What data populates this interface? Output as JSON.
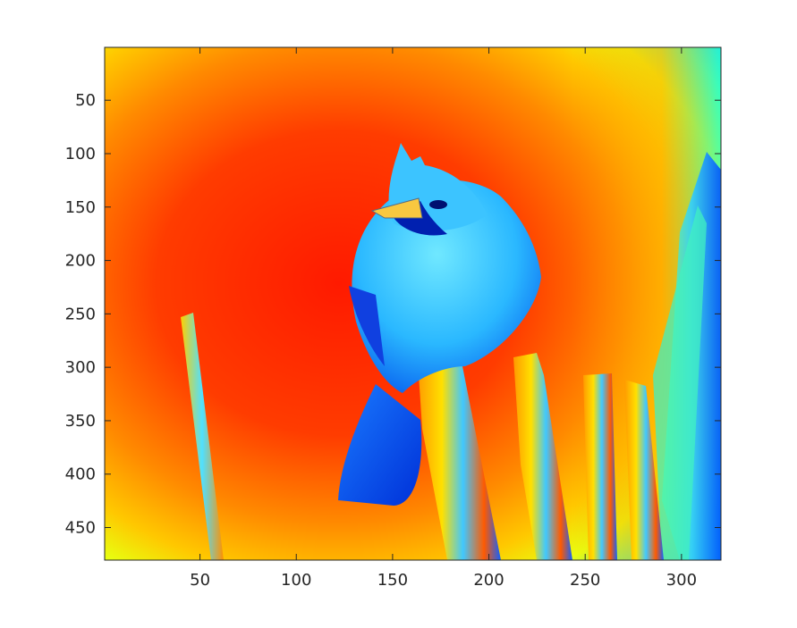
{
  "chart_data": {
    "type": "heatmap",
    "title": "",
    "xlabel": "",
    "ylabel": "",
    "colormap": "jet",
    "image_size": {
      "cols": 320,
      "rows": 480
    },
    "xlim": [
      0.5,
      320.5
    ],
    "ylim": [
      0.5,
      480.5
    ],
    "y_direction": "reverse",
    "grid": false,
    "legend": "none",
    "x_ticks": [
      50,
      100,
      150,
      200,
      250,
      300
    ],
    "x_tick_labels": [
      "50",
      "100",
      "150",
      "200",
      "250",
      "300"
    ],
    "y_ticks": [
      50,
      100,
      150,
      200,
      250,
      300,
      350,
      400,
      450
    ],
    "y_tick_labels": [
      "50",
      "100",
      "150",
      "200",
      "250",
      "300",
      "350",
      "400",
      "450"
    ],
    "content": "jet-colormapped intensity image of a cardinal bird perched on a wooden post against a bright background"
  }
}
